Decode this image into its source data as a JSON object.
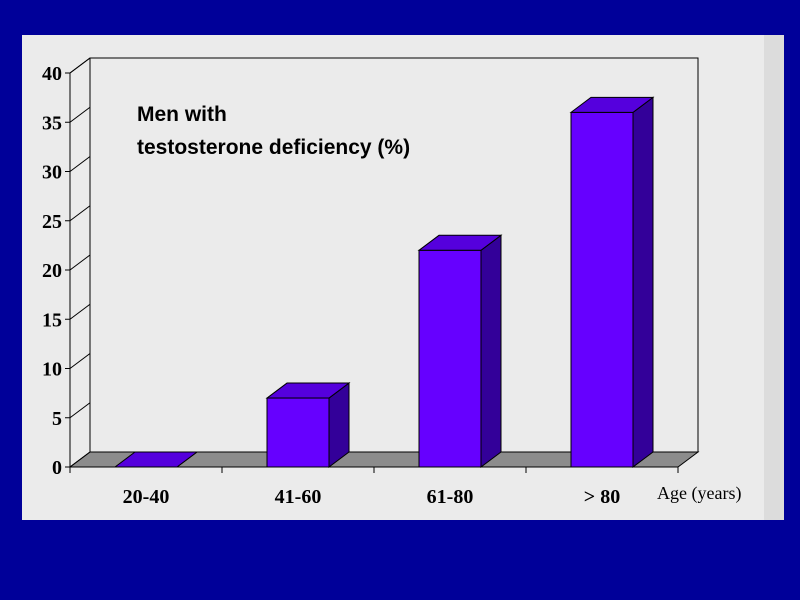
{
  "chart_data": {
    "type": "bar",
    "title_lines": [
      "Men with",
      "testosterone deficiency (%)"
    ],
    "xlabel": "Age (years)",
    "ylabel": "",
    "categories": [
      "20-40",
      "41-60",
      "61-80",
      "> 80"
    ],
    "values": [
      0,
      7,
      22,
      36
    ],
    "ylim": [
      0,
      40
    ],
    "yticks": [
      0,
      5,
      10,
      15,
      20,
      25,
      30,
      35,
      40
    ],
    "grid": false,
    "legend": "none",
    "style": "3d-column"
  },
  "colors": {
    "background": "#000099",
    "panel": "#ebebeb",
    "bar_front": "#6600ff",
    "bar_side": "#330099",
    "bar_top": "#5500dd",
    "floor": "#8c8c8c"
  }
}
